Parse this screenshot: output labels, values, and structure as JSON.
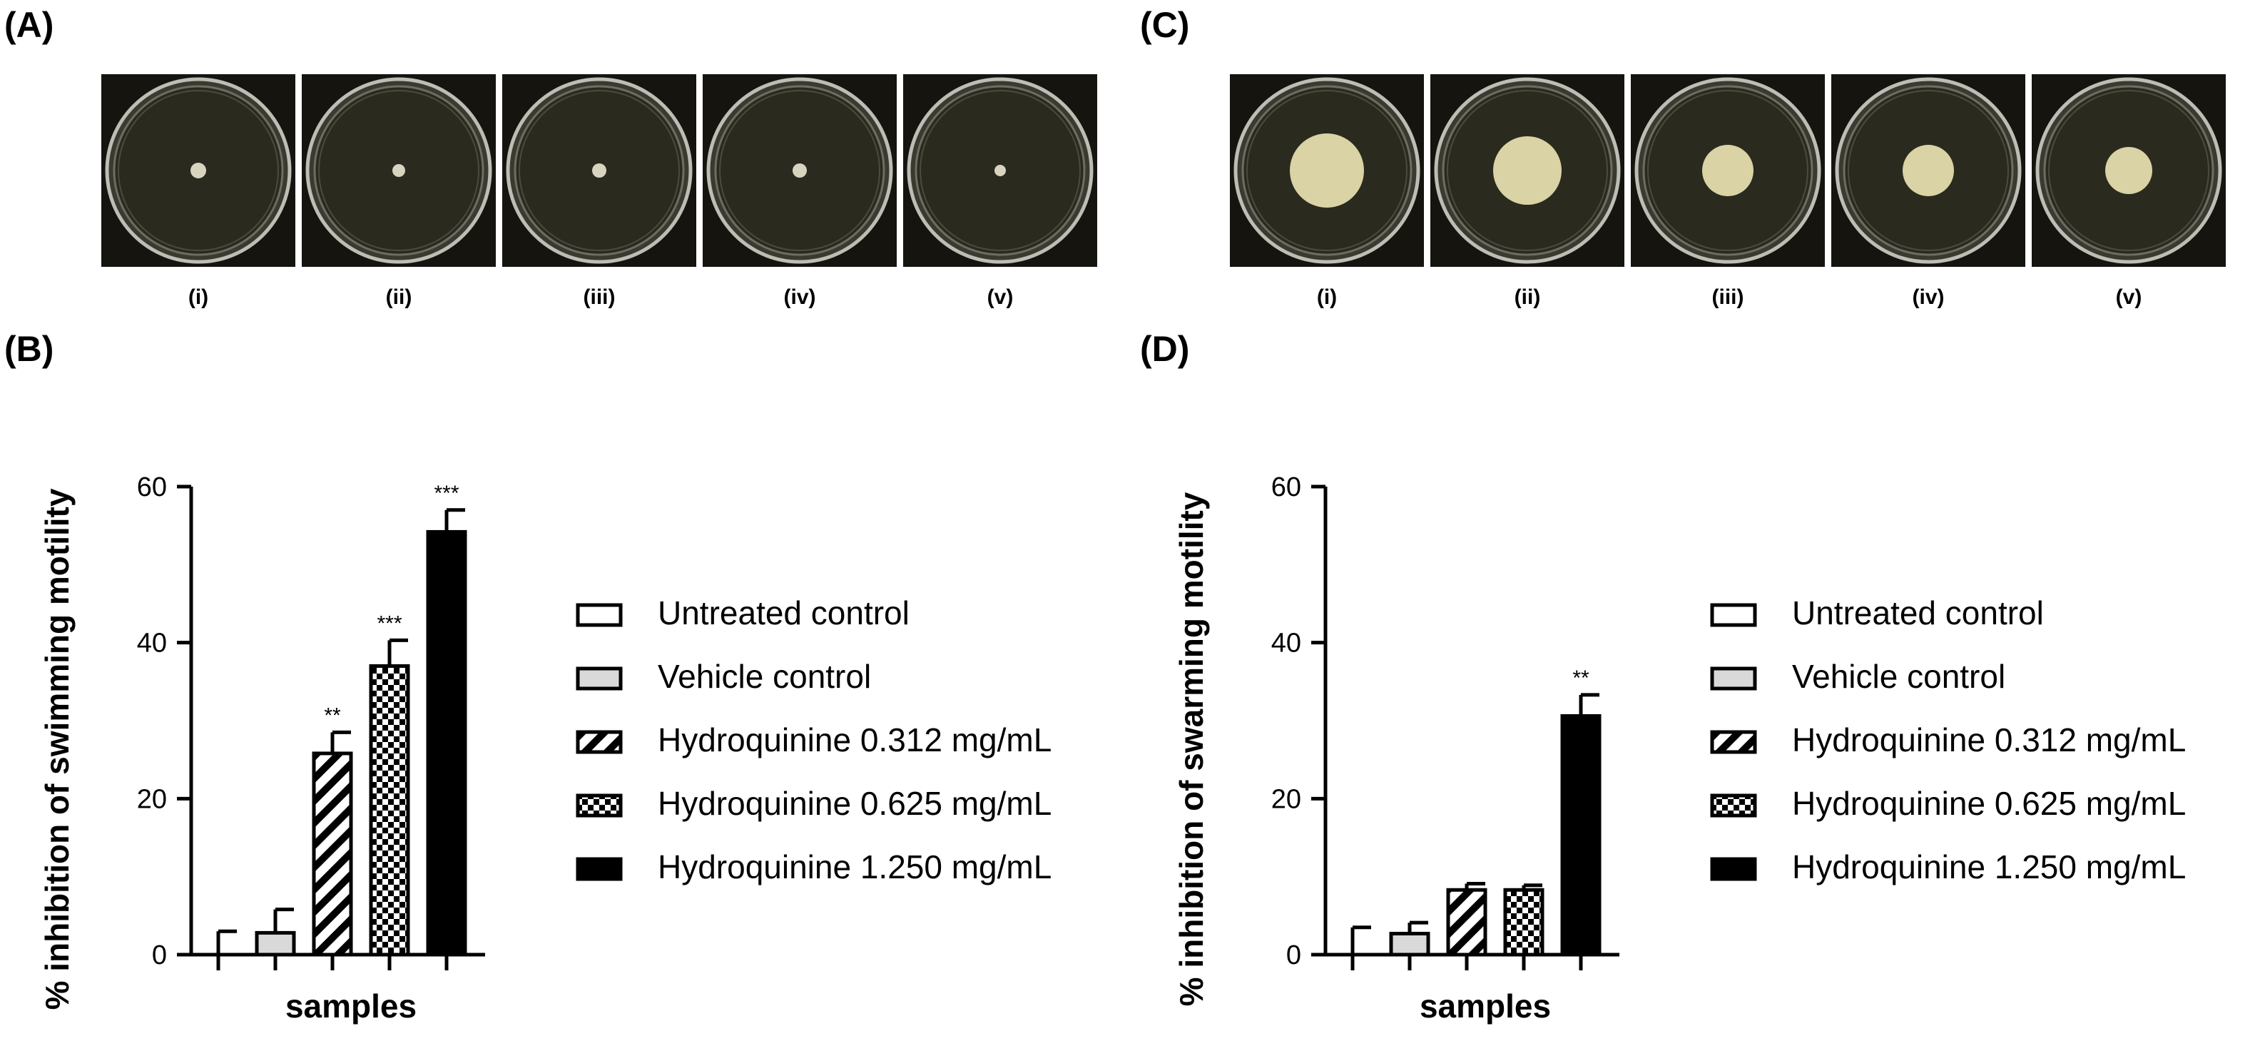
{
  "panels": {
    "A": {
      "label": "(A)",
      "wells": [
        "(i)",
        "(ii)",
        "(iii)",
        "(iv)",
        "(v)"
      ]
    },
    "B": {
      "label": "(B)"
    },
    "C": {
      "label": "(C)",
      "wells": [
        "(i)",
        "(ii)",
        "(iii)",
        "(iv)",
        "(v)"
      ]
    },
    "D": {
      "label": "(D)"
    }
  },
  "colors": {
    "plate_bg": "#15140f",
    "agar": "#2a2a1f",
    "colony_small": "#d8d4c0",
    "colony_large": "#d9d3a5",
    "bar_black": "#000000",
    "bar_white": "#ffffff",
    "bar_grey": "#d9d9d9"
  },
  "legend": [
    {
      "label": "Untreated control",
      "pattern": "white"
    },
    {
      "label": "Vehicle control",
      "pattern": "grey"
    },
    {
      "label": "Hydroquinine 0.312 mg/mL",
      "pattern": "hatch"
    },
    {
      "label": "Hydroquinine 0.625 mg/mL",
      "pattern": "checker"
    },
    {
      "label": "Hydroquinine 1.250 mg/mL",
      "pattern": "black"
    }
  ],
  "chart_data": [
    {
      "type": "bar",
      "panel": "B",
      "ylabel": "% inhibition of swimming motility",
      "xlabel": "samples",
      "ylim": [
        0,
        60
      ],
      "yticks": [
        0,
        20,
        40,
        60
      ],
      "categories": [
        "Untreated control",
        "Vehicle control",
        "Hydroquinine 0.312 mg/mL",
        "Hydroquinine 0.625 mg/mL",
        "Hydroquinine 1.250 mg/mL"
      ],
      "values": [
        0,
        2.8,
        25.8,
        37.0,
        54.2
      ],
      "errors": [
        3.0,
        3.0,
        2.7,
        3.3,
        2.8
      ],
      "significance": [
        "",
        "",
        "**",
        "***",
        "***"
      ]
    },
    {
      "type": "bar",
      "panel": "D",
      "ylabel": "% inhibition of swarming motility",
      "xlabel": "samples",
      "ylim": [
        0,
        60
      ],
      "yticks": [
        0,
        20,
        40,
        60
      ],
      "categories": [
        "Untreated control",
        "Vehicle control",
        "Hydroquinine 0.312 mg/mL",
        "Hydroquinine 0.625 mg/mL",
        "Hydroquinine 1.250 mg/mL"
      ],
      "values": [
        0,
        2.7,
        8.3,
        8.3,
        30.6
      ],
      "errors": [
        3.5,
        1.4,
        0.8,
        0.6,
        2.7
      ],
      "significance": [
        "",
        "",
        "",
        "",
        "**"
      ]
    }
  ]
}
